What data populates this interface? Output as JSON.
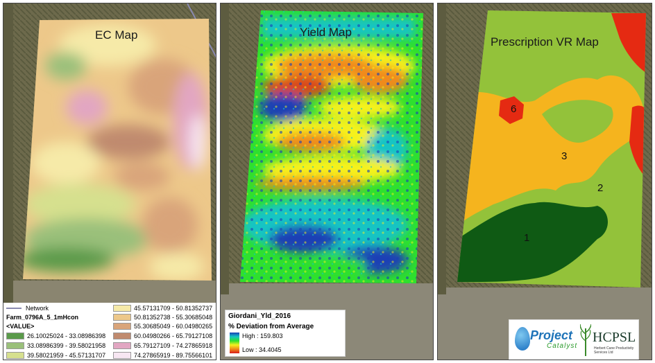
{
  "panels": {
    "ec": {
      "title": "EC Map",
      "legend": {
        "network_label": "Network",
        "layer_name": "Farm_0796A_5_1mHcon",
        "value_header": "<VALUE>",
        "classes": [
          {
            "label": "26.10025024 - 33.08986398",
            "color": "#5a9a4a"
          },
          {
            "label": "33.08986399 - 39.58021958",
            "color": "#9ac07a"
          },
          {
            "label": "39.58021959 - 45.57131707",
            "color": "#d6e08e"
          },
          {
            "label": "45.57131709 - 50.81352737",
            "color": "#f6eaa8"
          },
          {
            "label": "50.81352738 - 55.30685048",
            "color": "#edc88a"
          },
          {
            "label": "55.30685049 - 60.04980265",
            "color": "#d9a47a"
          },
          {
            "label": "60.04980266 - 65.79127108",
            "color": "#c08a6e"
          },
          {
            "label": "65.79127109 - 74.27865918",
            "color": "#e2a6c2"
          },
          {
            "label": "74.27865919 - 89.75566101",
            "color": "#f7e6f2"
          }
        ]
      }
    },
    "yield": {
      "title": "Yield Map",
      "legend": {
        "layer_name": "Giordani_Yld_2016",
        "subtitle": "% Deviation from Average",
        "high": "High : 159.803",
        "low": "Low : 34.4045"
      }
    },
    "prescription": {
      "title": "Prescription VR Map",
      "zones": [
        "6",
        "3",
        "2",
        "1"
      ],
      "colors": {
        "zone1": "#0f5a14",
        "zone2": "#93c23a",
        "zone3": "#f5b41e",
        "zone6": "#e52a12"
      },
      "logo": {
        "project": "Project",
        "catalyst": "Catalyst",
        "org": "HCPSL",
        "org_sub": "Herbert Cane Productivity Services Ltd"
      }
    }
  }
}
